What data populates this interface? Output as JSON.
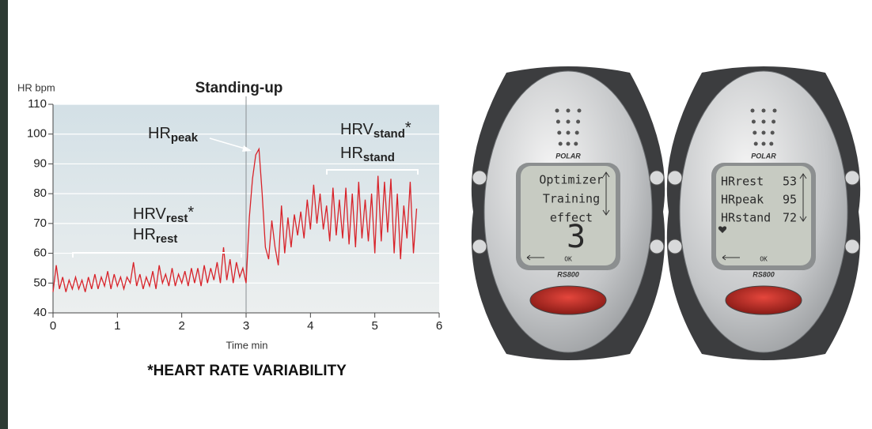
{
  "chart_data": {
    "type": "line",
    "y_label": "HR bpm",
    "x_label": "Time min",
    "annotation": "Standing-up",
    "labels": [
      {
        "text": "HR",
        "sub": "peak"
      },
      {
        "text": "HRV",
        "sub": "rest",
        "suffix": "*"
      },
      {
        "text": "HR",
        "sub": "rest"
      },
      {
        "text": "HRV",
        "sub": "stand",
        "suffix": "*"
      },
      {
        "text": "HR",
        "sub": "stand"
      }
    ],
    "footnote": "*HEART RATE VARIABILITY",
    "x": [
      0,
      0.05,
      0.1,
      0.15,
      0.2,
      0.25,
      0.3,
      0.35,
      0.4,
      0.45,
      0.5,
      0.55,
      0.6,
      0.65,
      0.7,
      0.75,
      0.8,
      0.85,
      0.9,
      0.95,
      1.0,
      1.05,
      1.1,
      1.15,
      1.2,
      1.25,
      1.3,
      1.35,
      1.4,
      1.45,
      1.5,
      1.55,
      1.6,
      1.65,
      1.7,
      1.75,
      1.8,
      1.85,
      1.9,
      1.95,
      2.0,
      2.05,
      2.1,
      2.15,
      2.2,
      2.25,
      2.3,
      2.35,
      2.4,
      2.45,
      2.5,
      2.55,
      2.6,
      2.65,
      2.7,
      2.75,
      2.8,
      2.85,
      2.9,
      2.95,
      3.0,
      3.05,
      3.1,
      3.15,
      3.2,
      3.25,
      3.3,
      3.35,
      3.4,
      3.45,
      3.5,
      3.55,
      3.6,
      3.65,
      3.7,
      3.75,
      3.8,
      3.85,
      3.9,
      3.95,
      4.0,
      4.05,
      4.1,
      4.15,
      4.2,
      4.25,
      4.3,
      4.35,
      4.4,
      4.45,
      4.5,
      4.55,
      4.6,
      4.65,
      4.7,
      4.75,
      4.8,
      4.85,
      4.9,
      4.95,
      5.0,
      5.05,
      5.1,
      5.15,
      5.2,
      5.25,
      5.3,
      5.35,
      5.4,
      5.45,
      5.5,
      5.55,
      5.6,
      5.65
    ],
    "series": [
      {
        "color": "#d8232a",
        "values": [
          47,
          56,
          48,
          52,
          47,
          51,
          48,
          52,
          48,
          51,
          47,
          52,
          48,
          53,
          48,
          52,
          49,
          54,
          48,
          53,
          49,
          52,
          48,
          52,
          50,
          57,
          49,
          53,
          48,
          52,
          49,
          54,
          48,
          56,
          50,
          53,
          49,
          55,
          49,
          53,
          50,
          54,
          49,
          55,
          50,
          55,
          49,
          56,
          50,
          55,
          51,
          57,
          50,
          62,
          51,
          58,
          50,
          57,
          52,
          55,
          50,
          72,
          85,
          93,
          95,
          80,
          62,
          58,
          71,
          62,
          56,
          76,
          60,
          72,
          62,
          73,
          66,
          74,
          65,
          78,
          68,
          83,
          70,
          80,
          68,
          76,
          64,
          82,
          66,
          78,
          65,
          82,
          63,
          80,
          62,
          84,
          65,
          78,
          64,
          80,
          60,
          86,
          64,
          84,
          67,
          85,
          60,
          80,
          58,
          76,
          65,
          84,
          60,
          75
        ]
      }
    ],
    "xlim": [
      0,
      6
    ],
    "ylim": [
      40,
      110
    ],
    "xticks": [
      0,
      1,
      2,
      3,
      4,
      5,
      6
    ],
    "yticks": [
      40,
      50,
      60,
      70,
      80,
      90,
      100,
      110
    ],
    "grid": true
  },
  "watches": [
    {
      "brand": "POLAR",
      "model": "RS800",
      "button": "OK",
      "lines": [
        "Optimizer",
        "Training",
        "effect"
      ],
      "big": "3"
    },
    {
      "brand": "POLAR",
      "model": "RS800",
      "button": "OK",
      "rows": [
        {
          "label": "HRrest",
          "value": "53"
        },
        {
          "label": "HRpeak",
          "value": "95"
        },
        {
          "label": "HRstand",
          "value": "72"
        }
      ]
    }
  ]
}
